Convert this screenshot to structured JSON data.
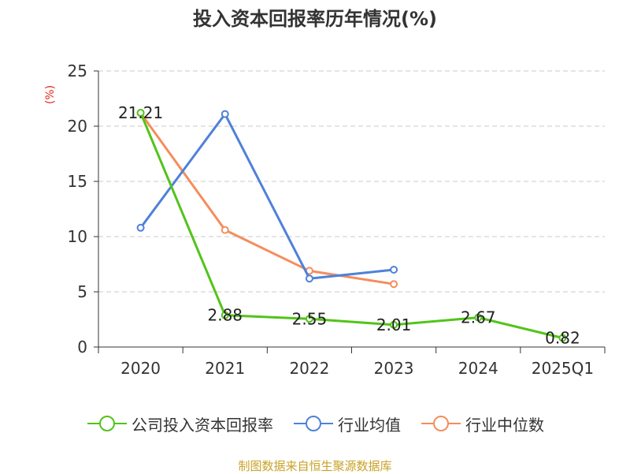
{
  "chart_data": {
    "type": "line",
    "title": "投入资本回报率历年情况(%)",
    "ylabel": "(%)",
    "xlabel": "",
    "categories": [
      "2020",
      "2021",
      "2022",
      "2023",
      "2024",
      "2025Q1"
    ],
    "ylim": [
      0,
      25
    ],
    "yticks": [
      0,
      5,
      10,
      15,
      20,
      25
    ],
    "grid": true,
    "legend_position": "bottom",
    "series": [
      {
        "name": "公司投入资本回报率",
        "color": "#52c41a",
        "values": [
          21.21,
          2.88,
          2.55,
          2.01,
          2.67,
          0.82
        ],
        "labels": [
          "21.21",
          "2.88",
          "2.55",
          "2.01",
          "2.67",
          "0.82"
        ]
      },
      {
        "name": "行业均值",
        "color": "#4f81d9",
        "values": [
          10.8,
          21.1,
          6.2,
          7.0,
          null,
          null
        ]
      },
      {
        "name": "行业中位数",
        "color": "#f58d5c",
        "values": [
          21.2,
          10.6,
          6.9,
          5.7,
          null,
          null
        ]
      }
    ]
  },
  "source": "制图数据来自恒生聚源数据库"
}
